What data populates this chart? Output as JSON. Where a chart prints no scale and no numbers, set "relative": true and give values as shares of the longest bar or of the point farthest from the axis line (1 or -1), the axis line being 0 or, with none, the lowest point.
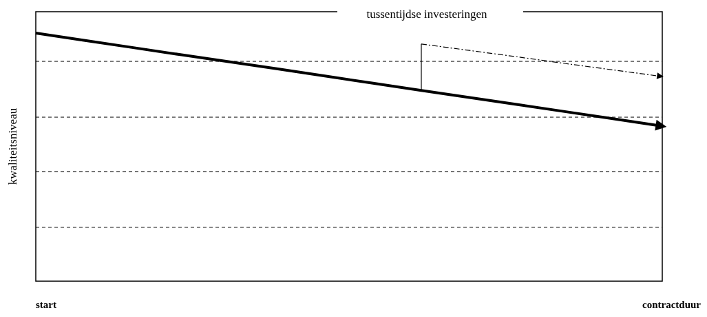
{
  "chart_data": {
    "type": "line",
    "relative": true,
    "ylabel": "kwaliteitsniveau",
    "categories": [
      null,
      null,
      null,
      null,
      null,
      null,
      null,
      null,
      null,
      null,
      null,
      null,
      null,
      null
    ],
    "annotations": [
      "tussentijdse investeringen",
      "start",
      "contractduur"
    ],
    "ref_lines": [
      {
        "axis": "y",
        "value": 0.886,
        "line_style": "dashed",
        "color": "#000000"
      },
      {
        "axis": "y",
        "value": 0.661,
        "line_style": "dashed",
        "color": "#000000"
      },
      {
        "axis": "y",
        "value": 0.442,
        "line_style": "dashed",
        "color": "#000000"
      },
      {
        "axis": "y",
        "value": 0.217,
        "line_style": "dashed",
        "color": "#000000"
      }
    ],
    "series": [
      {
        "color": "#000000",
        "values": [
          1,
          0.971,
          0.942,
          0.913,
          0.885,
          0.856,
          0.827,
          0.798,
          0.769,
          0.74,
          0.712,
          0.683,
          0.654,
          0.625
        ],
        "line_style": "solid"
      },
      {
        "color": "#000000",
        "values": [
          null,
          null,
          null,
          null,
          null,
          null,
          null,
          null,
          0.956,
          0.93,
          0.904,
          0.877,
          0.851,
          0.825
        ],
        "line_style": "dashed"
      }
    ]
  }
}
